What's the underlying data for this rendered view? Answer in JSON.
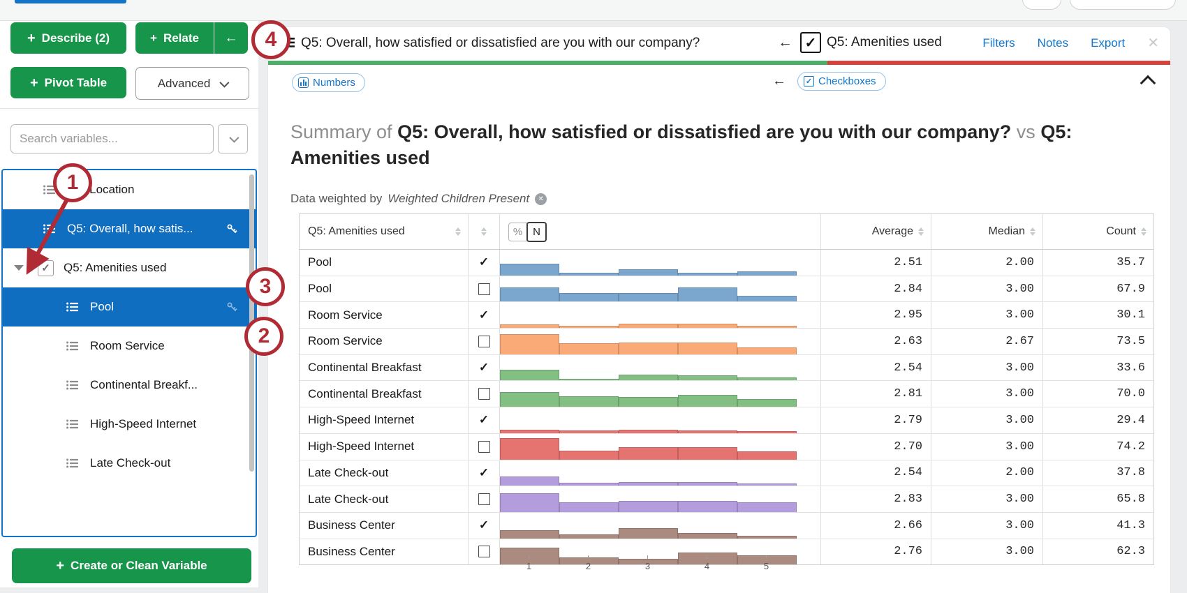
{
  "glyphs": {
    "plus": "+",
    "back_arrow": "←",
    "check": "✓",
    "close": "✕"
  },
  "colors": {
    "selection_blue": "#0F6EC0",
    "accent_green": "#17954A",
    "link_blue": "#1076CE",
    "bar_green": "#4CAF68",
    "bar_red": "#D8413C",
    "annotation_red": "#B12B35",
    "hist": {
      "blue": "#7BA7CE",
      "orange": "#F9AA77",
      "green": "#83BF83",
      "red": "#E5736F",
      "purple": "#B49DDC",
      "brown": "#AB8A80"
    }
  },
  "sidebar": {
    "buttons": {
      "describe": "Describe (2)",
      "relate": "Relate",
      "pivot": "Pivot Table",
      "advanced": "Advanced",
      "create": "Create or Clean Variable"
    },
    "search_placeholder": "Search variables...",
    "variables": [
      {
        "label": "Q3: Location",
        "icon": "list",
        "indent": 0
      },
      {
        "label": "Q5: Overall, how satis...",
        "icon": "list",
        "selected": true,
        "key": true,
        "indent": 0
      },
      {
        "label": "Q5: Amenities used",
        "caret": true,
        "checkbox": true,
        "checked": true,
        "indent": 0
      },
      {
        "label": "Pool",
        "icon": "list",
        "selected": true,
        "key": true,
        "key_faint": true,
        "indent": 1
      },
      {
        "label": "Room Service",
        "icon": "list",
        "indent": 1
      },
      {
        "label": "Continental Breakf...",
        "icon": "list",
        "indent": 1
      },
      {
        "label": "High-Speed Internet",
        "icon": "list",
        "indent": 1
      },
      {
        "label": "Late Check-out",
        "icon": "list",
        "indent": 1
      }
    ]
  },
  "panel": {
    "header": {
      "title": "Q5: Overall, how satisfied or dissatisfied are you with our company?",
      "secondary": "Q5: Amenities used",
      "links": [
        "Filters",
        "Notes",
        "Export"
      ]
    },
    "toolbar": {
      "left_pill": "Numbers",
      "right_pill": "Checkboxes"
    },
    "summary": {
      "prefix": "Summary of",
      "title": "Q5: Overall, how satisfied or dissatisfied are you with our company?",
      "vs": "vs",
      "secondary": "Q5: Amenities used",
      "weight_prefix": "Data weighted by",
      "weight_name": "Weighted Children Present"
    }
  },
  "table": {
    "col1_header": "Q5: Amenities used",
    "toggle": {
      "percent": "%",
      "count": "N"
    },
    "num_headers": [
      "Average",
      "Median",
      "Count"
    ],
    "axis_ticks": [
      "1",
      "2",
      "3",
      "4",
      "5"
    ]
  },
  "annotations": {
    "steps": [
      "1",
      "2",
      "3",
      "4"
    ]
  },
  "chart_data": {
    "type": "histogram",
    "description": "Per-row mini histograms of satisfaction ratings 1-5 for each amenity, split by used (checked) vs not used (unchecked). Bin heights are relative (0-100) estimates of each row's in-cell histogram.",
    "x_values": [
      1,
      2,
      3,
      4,
      5
    ],
    "x_range": [
      1,
      5
    ],
    "columns": [
      "Average",
      "Median",
      "Count"
    ],
    "rows": [
      {
        "group": "Pool",
        "checked": true,
        "color": "blue",
        "bins": [
          48,
          11,
          27,
          10,
          16
        ],
        "average": "2.51",
        "median": "2.00",
        "count": "35.7"
      },
      {
        "group": "Pool",
        "checked": false,
        "color": "blue",
        "bins": [
          60,
          36,
          36,
          61,
          25
        ],
        "average": "2.84",
        "median": "3.00",
        "count": "67.9"
      },
      {
        "group": "Room Service",
        "checked": true,
        "color": "orange",
        "bins": [
          16,
          10,
          17,
          19,
          10
        ],
        "average": "2.95",
        "median": "3.00",
        "count": "30.1"
      },
      {
        "group": "Room Service",
        "checked": false,
        "color": "orange",
        "bins": [
          86,
          45,
          50,
          49,
          30
        ],
        "average": "2.63",
        "median": "2.67",
        "count": "73.5"
      },
      {
        "group": "Continental Breakfast",
        "checked": true,
        "color": "green",
        "bins": [
          46,
          8,
          25,
          22,
          13
        ],
        "average": "2.54",
        "median": "3.00",
        "count": "33.6"
      },
      {
        "group": "Continental Breakfast",
        "checked": false,
        "color": "green",
        "bins": [
          63,
          45,
          42,
          50,
          32
        ],
        "average": "2.81",
        "median": "3.00",
        "count": "70.0"
      },
      {
        "group": "High-Speed Internet",
        "checked": true,
        "color": "red",
        "bins": [
          15,
          12,
          14,
          12,
          8
        ],
        "average": "2.79",
        "median": "3.00",
        "count": "29.4"
      },
      {
        "group": "High-Speed Internet",
        "checked": false,
        "color": "red",
        "bins": [
          89,
          36,
          52,
          52,
          33
        ],
        "average": "2.70",
        "median": "3.00",
        "count": "74.2"
      },
      {
        "group": "Late Check-out",
        "checked": true,
        "color": "purple",
        "bins": [
          40,
          13,
          16,
          16,
          9
        ],
        "average": "2.54",
        "median": "2.00",
        "count": "37.8"
      },
      {
        "group": "Late Check-out",
        "checked": false,
        "color": "purple",
        "bins": [
          80,
          40,
          48,
          48,
          40
        ],
        "average": "2.83",
        "median": "3.00",
        "count": "65.8"
      },
      {
        "group": "Business Center",
        "checked": true,
        "color": "brown",
        "bins": [
          35,
          15,
          42,
          22,
          10
        ],
        "average": "2.66",
        "median": "3.00",
        "count": "41.3"
      },
      {
        "group": "Business Center",
        "checked": false,
        "color": "brown",
        "bins": [
          70,
          30,
          25,
          50,
          38
        ],
        "average": "2.76",
        "median": "3.00",
        "count": "62.3"
      }
    ]
  }
}
